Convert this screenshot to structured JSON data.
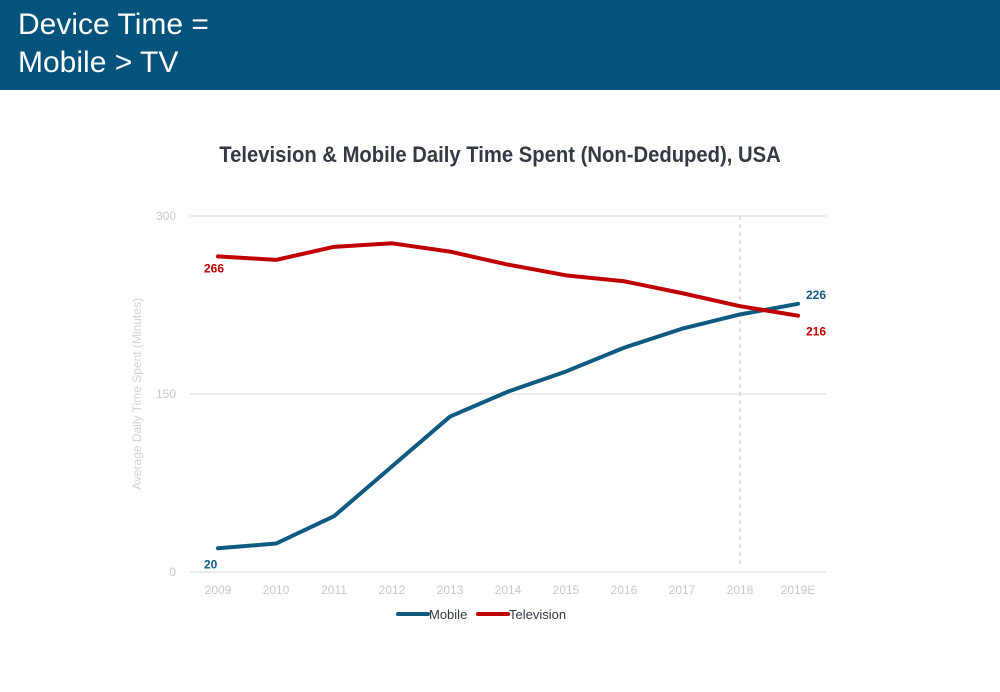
{
  "header": {
    "title": "Device Time =\nMobile > TV",
    "background": "#03537d"
  },
  "chart_data": {
    "type": "line",
    "title": "Television & Mobile Daily Time Spent (Non-Deduped), USA",
    "xlabel": "",
    "ylabel": "Average Daily Time Spent (Minutes)",
    "categories": [
      "2009",
      "2010",
      "2011",
      "2012",
      "2013",
      "2014",
      "2015",
      "2016",
      "2017",
      "2018",
      "2019E"
    ],
    "ylim": [
      0,
      300
    ],
    "yticks": [
      0,
      150,
      300
    ],
    "grid": true,
    "vertical_marker": {
      "at": "2018",
      "style": "dashed"
    },
    "legend_position": "bottom",
    "series": [
      {
        "name": "Mobile",
        "color": "#0f5a80",
        "values": [
          20,
          24,
          47,
          89,
          131,
          152,
          169,
          189,
          205,
          217,
          226
        ],
        "labels": [
          {
            "index": 0,
            "text": "20"
          },
          {
            "index": 10,
            "text": "226"
          }
        ]
      },
      {
        "name": "Television",
        "color": "#c00000",
        "values": [
          266,
          263,
          274,
          277,
          270,
          259,
          250,
          245,
          235,
          224,
          216
        ],
        "labels": [
          {
            "index": 0,
            "text": "266"
          },
          {
            "index": 10,
            "text": "216"
          }
        ]
      }
    ]
  }
}
